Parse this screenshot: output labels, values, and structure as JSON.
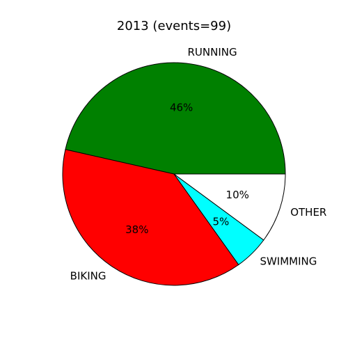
{
  "chart_data": {
    "type": "pie",
    "title": "2013 (events=99)",
    "categories": [
      "RUNNING",
      "BIKING",
      "SWIMMING",
      "OTHER"
    ],
    "values": [
      46,
      38,
      5,
      10
    ],
    "percent_labels": [
      "46%",
      "38%",
      "5%",
      "10%"
    ],
    "colors": [
      "#008000",
      "#ff0000",
      "#00ffff",
      "#ffffff"
    ],
    "start_angle_deg": 0,
    "direction": "counterclockwise",
    "legend": false
  }
}
